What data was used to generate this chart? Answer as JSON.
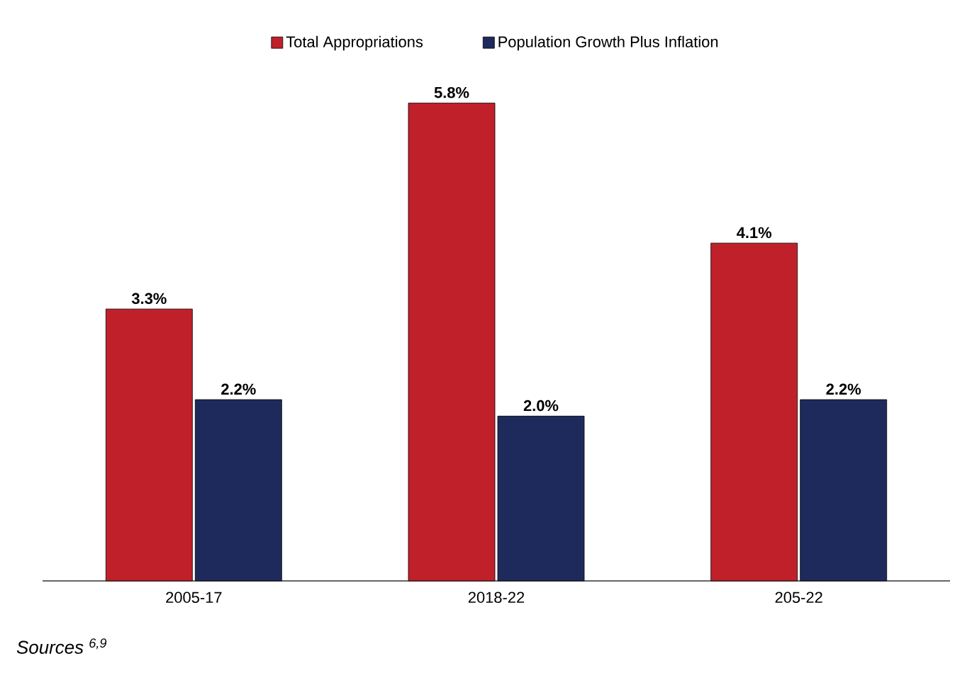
{
  "chart_data": {
    "type": "bar",
    "categories": [
      "2005-17",
      "2018-22",
      "205-22"
    ],
    "series": [
      {
        "name": "Total Appropriations",
        "color": "#c0202a",
        "values": [
          3.3,
          5.8,
          4.1
        ],
        "value_labels": [
          "3.3%",
          "5.8%",
          "4.1%"
        ]
      },
      {
        "name": "Population Growth Plus Inflation",
        "color": "#1f2a5c",
        "values": [
          2.2,
          2.0,
          2.2
        ],
        "value_labels": [
          "2.2%",
          "2.0%",
          "2.2%"
        ]
      }
    ],
    "legend": "top",
    "annotations": [
      "Sources $^{6,9}$"
    ]
  }
}
